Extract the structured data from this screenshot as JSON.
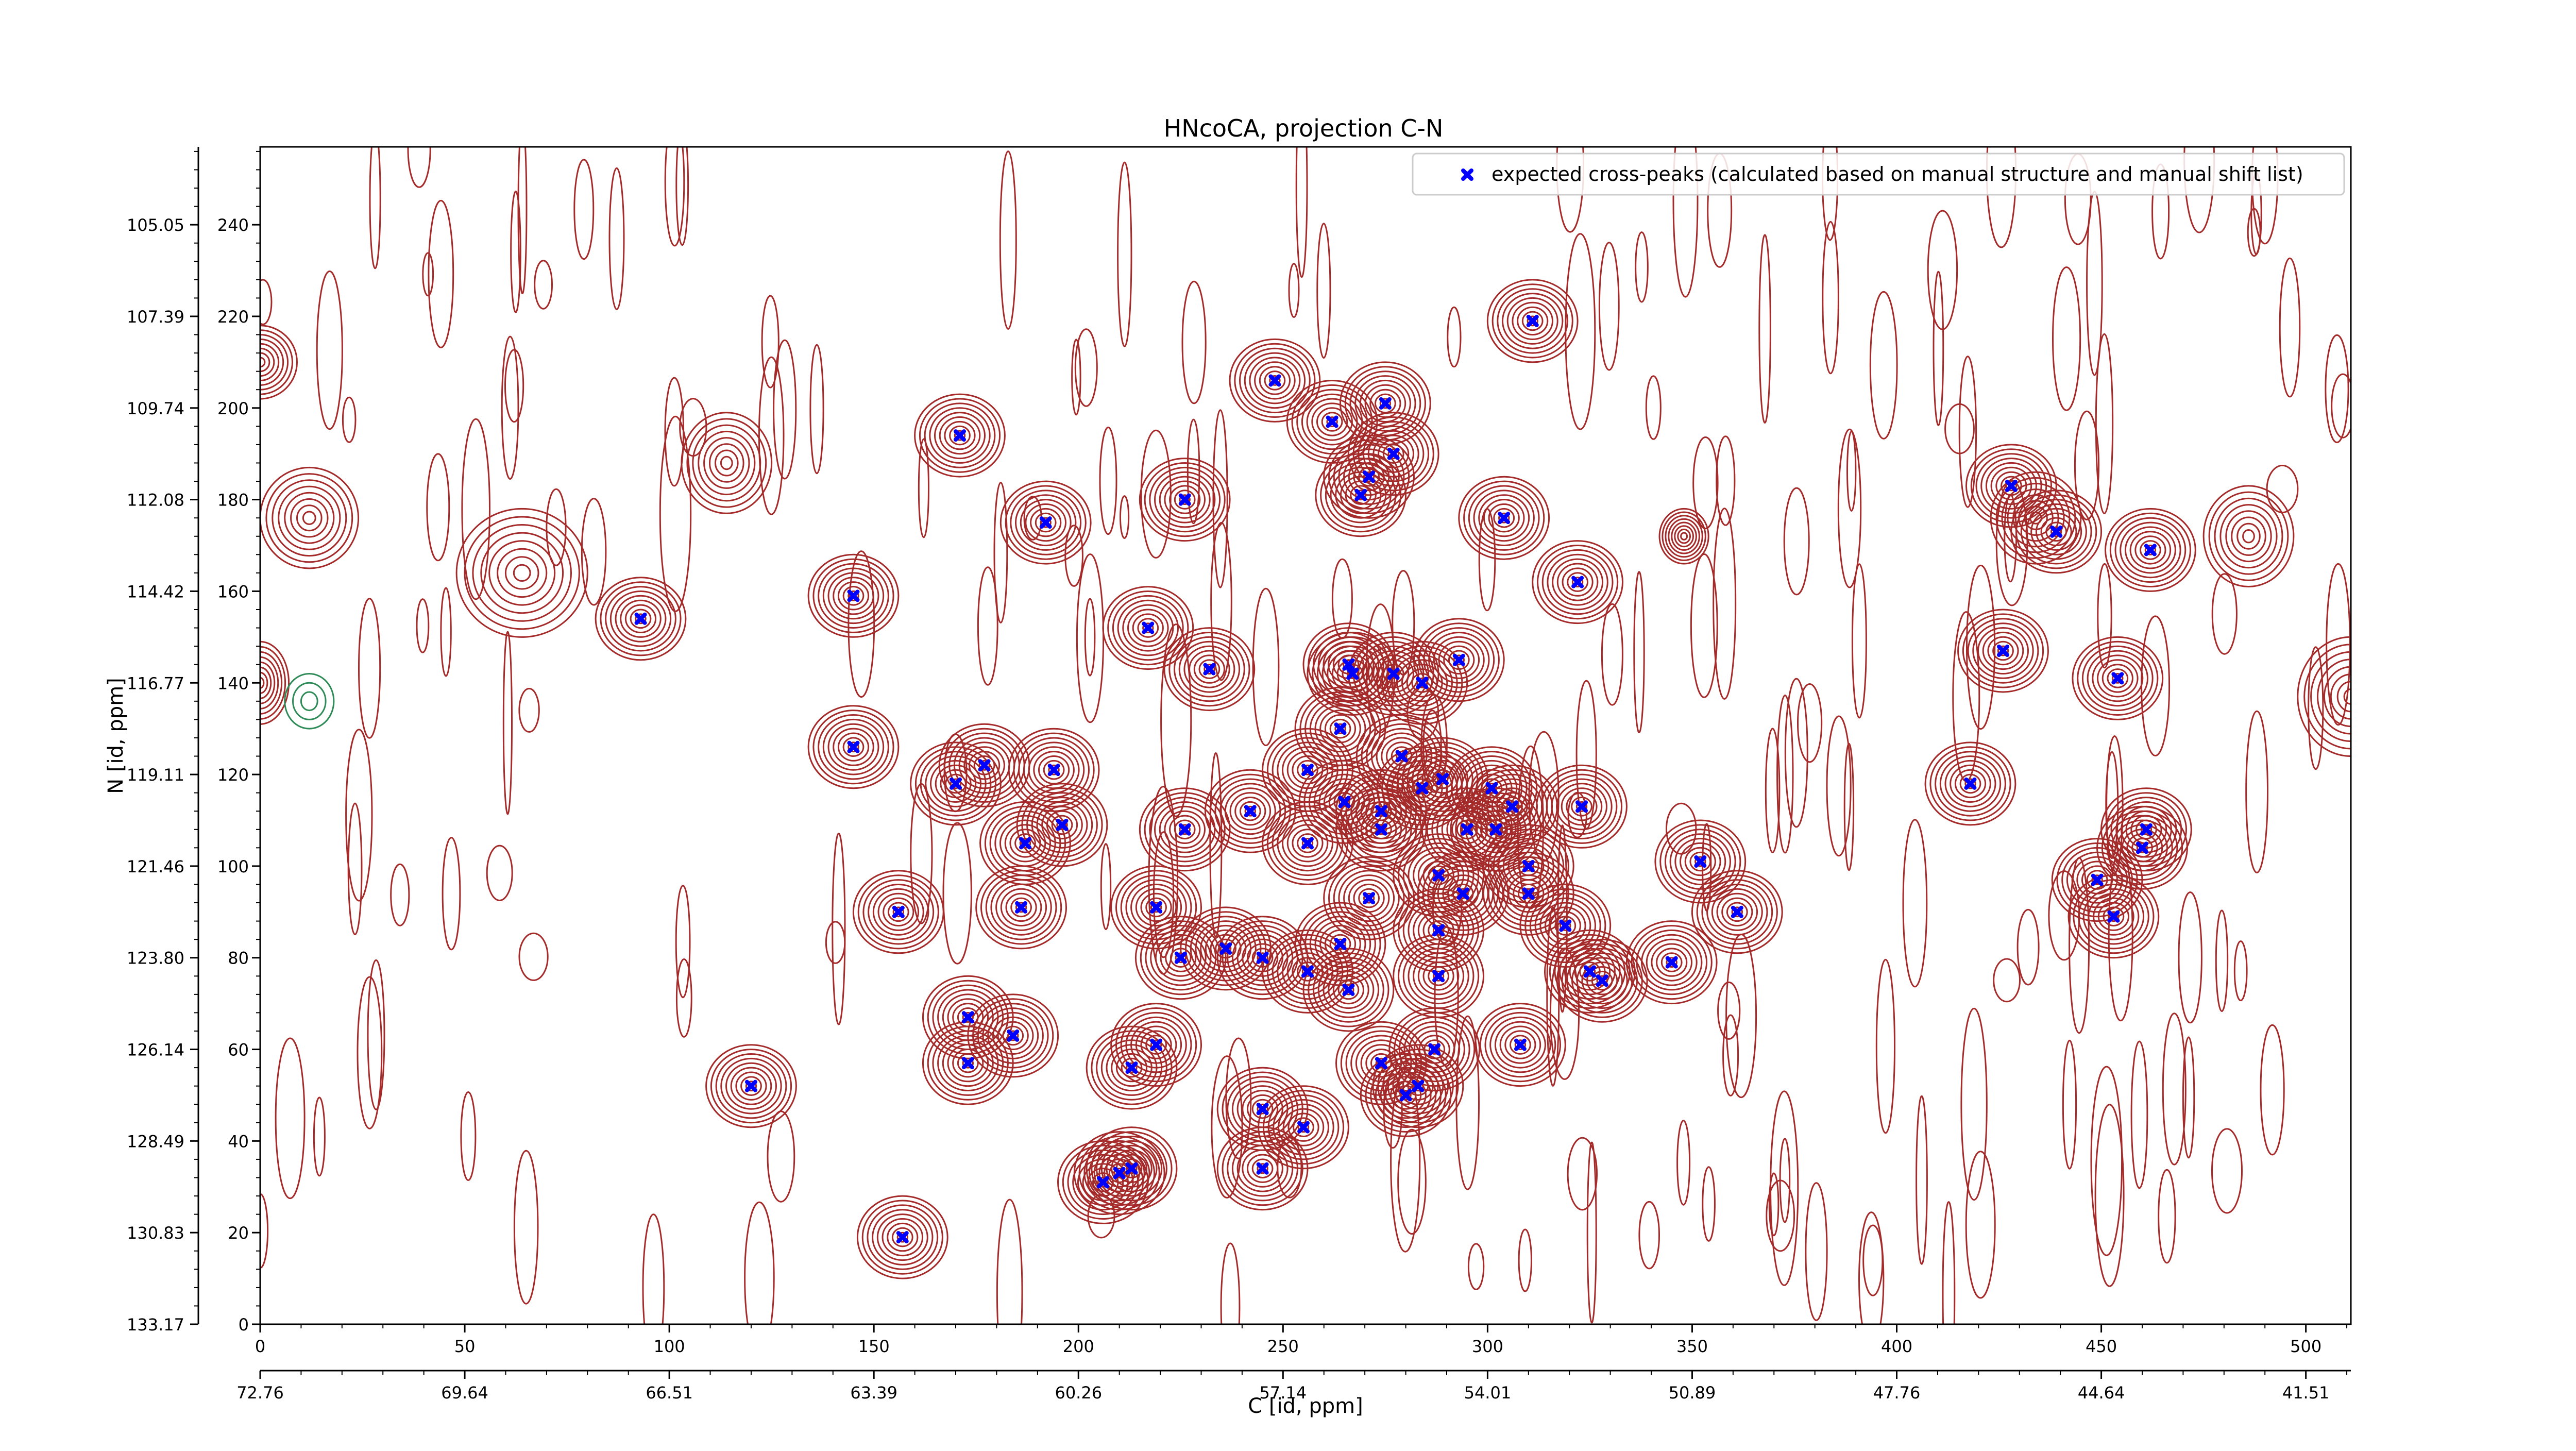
{
  "chart_data": {
    "type": "scatter",
    "title": "HNcoCA, projection C-N",
    "xlabel": "C [id, ppm]",
    "ylabel": "N [id, ppm]",
    "xlim": [
      0,
      511
    ],
    "ylim": [
      0,
      257
    ],
    "x_ticks": [
      0,
      50,
      100,
      150,
      200,
      250,
      300,
      350,
      400,
      450,
      500
    ],
    "y_ticks": [
      0,
      20,
      40,
      60,
      80,
      100,
      120,
      140,
      160,
      180,
      200,
      220,
      240
    ],
    "x_ppm_ticks": [
      {
        "x": 0,
        "label": "72.76"
      },
      {
        "x": 50,
        "label": "69.64"
      },
      {
        "x": 100,
        "label": "66.51"
      },
      {
        "x": 150,
        "label": "63.39"
      },
      {
        "x": 200,
        "label": "60.26"
      },
      {
        "x": 250,
        "label": "57.14"
      },
      {
        "x": 300,
        "label": "54.01"
      },
      {
        "x": 350,
        "label": "50.89"
      },
      {
        "x": 400,
        "label": "47.76"
      },
      {
        "x": 450,
        "label": "44.64"
      },
      {
        "x": 500,
        "label": "41.51"
      }
    ],
    "y_ppm_ticks": [
      {
        "y": 0,
        "label": "133.17"
      },
      {
        "y": 20,
        "label": "130.83"
      },
      {
        "y": 40,
        "label": "128.49"
      },
      {
        "y": 60,
        "label": "126.14"
      },
      {
        "y": 80,
        "label": "123.80"
      },
      {
        "y": 100,
        "label": "121.46"
      },
      {
        "y": 120,
        "label": "119.11"
      },
      {
        "y": 140,
        "label": "116.77"
      },
      {
        "y": 160,
        "label": "114.42"
      },
      {
        "y": 180,
        "label": "112.08"
      },
      {
        "y": 200,
        "label": "109.74"
      },
      {
        "y": 220,
        "label": "107.39"
      },
      {
        "y": 240,
        "label": "105.05"
      }
    ],
    "legend": {
      "position": "top-right",
      "label": "expected cross-peaks (calculated based on manual structure and manual shift list)"
    },
    "grid": false,
    "colors": {
      "marker": "#0000ff",
      "positive_contour": "#a52a2a",
      "negative_contour": "#2e8b57"
    },
    "series": [
      {
        "name": "expected cross-peaks (calculated based on manual structure and manual shift list)",
        "points": [
          [
            311,
            219
          ],
          [
            248,
            206
          ],
          [
            262,
            197
          ],
          [
            275,
            201
          ],
          [
            171,
            194
          ],
          [
            277,
            190
          ],
          [
            271,
            185
          ],
          [
            269,
            181
          ],
          [
            226,
            180
          ],
          [
            192,
            175
          ],
          [
            304,
            176
          ],
          [
            322,
            162
          ],
          [
            145,
            159
          ],
          [
            93,
            154
          ],
          [
            232,
            143
          ],
          [
            217,
            152
          ],
          [
            266,
            144
          ],
          [
            267,
            142
          ],
          [
            277,
            142
          ],
          [
            284,
            140
          ],
          [
            293,
            145
          ],
          [
            145,
            126
          ],
          [
            264,
            130
          ],
          [
            177,
            122
          ],
          [
            170,
            118
          ],
          [
            194,
            121
          ],
          [
            156,
            90
          ],
          [
            256,
            121
          ],
          [
            279,
            124
          ],
          [
            284,
            117
          ],
          [
            289,
            119
          ],
          [
            242,
            112
          ],
          [
            226,
            108
          ],
          [
            274,
            108
          ],
          [
            274,
            112
          ],
          [
            265,
            114
          ],
          [
            187,
            105
          ],
          [
            196,
            109
          ],
          [
            256,
            105
          ],
          [
            301,
            117
          ],
          [
            302,
            108
          ],
          [
            295,
            108
          ],
          [
            306,
            113
          ],
          [
            323,
            113
          ],
          [
            352,
            101
          ],
          [
            310,
            100
          ],
          [
            288,
            98
          ],
          [
            310,
            94
          ],
          [
            294,
            94
          ],
          [
            271,
            93
          ],
          [
            219,
            91
          ],
          [
            186,
            91
          ],
          [
            361,
            90
          ],
          [
            288,
            86
          ],
          [
            319,
            87
          ],
          [
            264,
            83
          ],
          [
            236,
            82
          ],
          [
            225,
            80
          ],
          [
            245,
            80
          ],
          [
            256,
            77
          ],
          [
            288,
            76
          ],
          [
            325,
            77
          ],
          [
            328,
            75
          ],
          [
            345,
            79
          ],
          [
            266,
            73
          ],
          [
            173,
            67
          ],
          [
            184,
            63
          ],
          [
            219,
            61
          ],
          [
            308,
            61
          ],
          [
            287,
            60
          ],
          [
            173,
            57
          ],
          [
            274,
            57
          ],
          [
            213,
            56
          ],
          [
            120,
            52
          ],
          [
            283,
            52
          ],
          [
            280,
            50
          ],
          [
            245,
            47
          ],
          [
            255,
            43
          ],
          [
            206,
            31
          ],
          [
            210,
            33
          ],
          [
            213,
            34
          ],
          [
            245,
            34
          ],
          [
            157,
            19
          ],
          [
            428,
            183
          ],
          [
            439,
            173
          ],
          [
            462,
            169
          ],
          [
            426,
            147
          ],
          [
            454,
            141
          ],
          [
            418,
            118
          ],
          [
            461,
            108
          ],
          [
            460,
            104
          ],
          [
            449,
            97
          ],
          [
            453,
            89
          ]
        ]
      }
    ],
    "contour_peaks_positive": [
      [
        0,
        210,
        9,
        8
      ],
      [
        12,
        176,
        12,
        11
      ],
      [
        114,
        188,
        11,
        11
      ],
      [
        64,
        164,
        16,
        14
      ],
      [
        348,
        172,
        6,
        6
      ],
      [
        434,
        176,
        11,
        10
      ],
      [
        486,
        172,
        11,
        11
      ],
      [
        0,
        140,
        7,
        9
      ],
      [
        511,
        137,
        13,
        13
      ]
    ],
    "contour_peaks_negative": [
      [
        12,
        136,
        6,
        6
      ]
    ]
  }
}
